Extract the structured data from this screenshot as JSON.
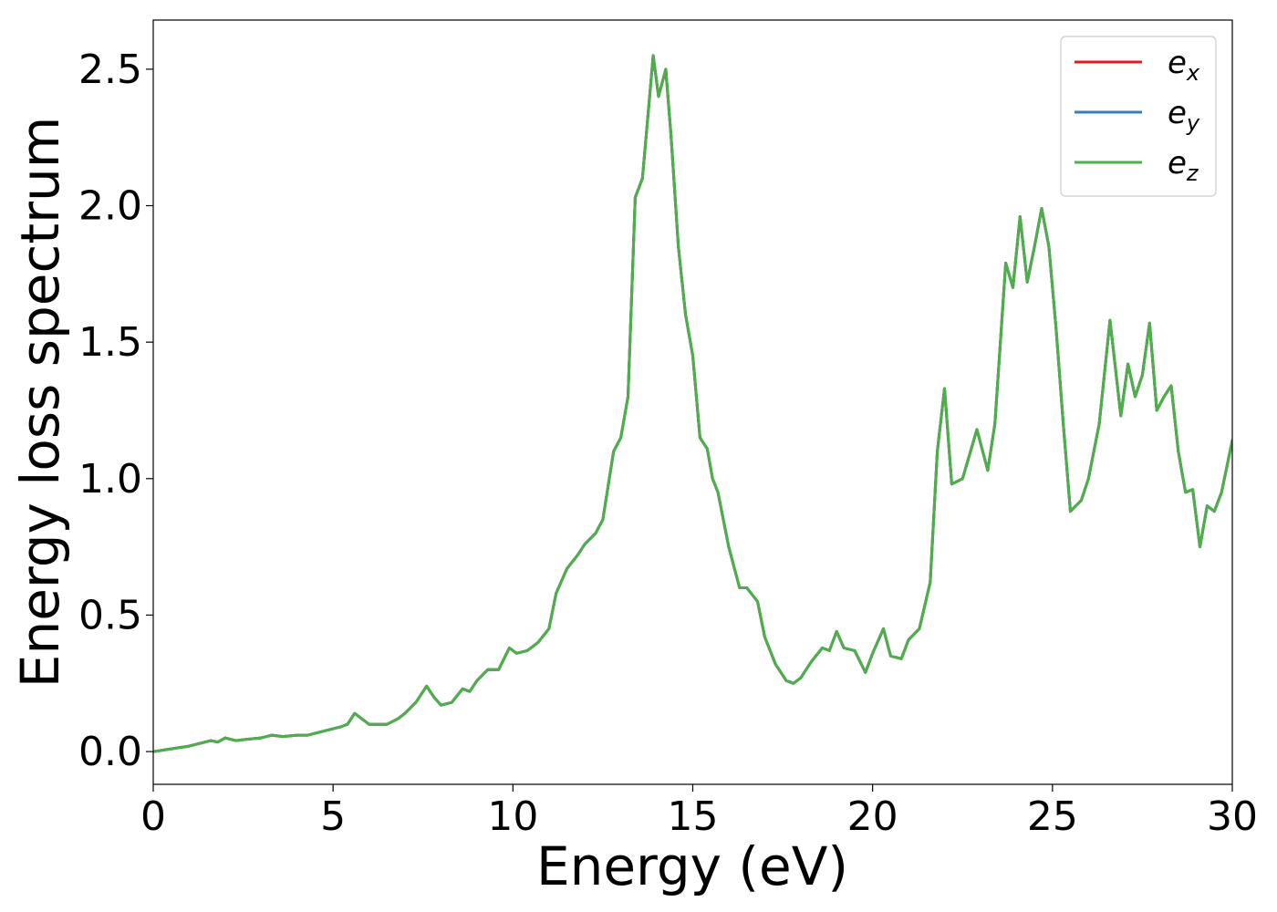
{
  "chart_data": {
    "type": "line",
    "xlabel": "Energy (eV)",
    "ylabel": "Energy loss spectrum",
    "xlim": [
      0,
      30
    ],
    "ylim": [
      -0.12,
      2.68
    ],
    "xticks": [
      0,
      5,
      10,
      15,
      20,
      25,
      30
    ],
    "xtick_labels": [
      "0",
      "5",
      "10",
      "15",
      "20",
      "25",
      "30"
    ],
    "yticks": [
      0.0,
      0.5,
      1.0,
      1.5,
      2.0,
      2.5
    ],
    "ytick_labels": [
      "0.0",
      "0.5",
      "1.0",
      "1.5",
      "2.0",
      "2.5"
    ],
    "grid": false,
    "legend_position": "top-right",
    "series": [
      {
        "name": "e",
        "subscript": "x",
        "color": "#e41a1c",
        "x": [
          0,
          0.5,
          1.0,
          1.3,
          1.6,
          1.8,
          2.0,
          2.3,
          2.6,
          3.0,
          3.3,
          3.6,
          4.0,
          4.3,
          4.6,
          4.9,
          5.2,
          5.4,
          5.6,
          5.8,
          6.0,
          6.3,
          6.5,
          6.8,
          7.0,
          7.3,
          7.6,
          7.8,
          8.0,
          8.3,
          8.6,
          8.8,
          9.0,
          9.3,
          9.6,
          9.9,
          10.1,
          10.4,
          10.7,
          11.0,
          11.2,
          11.5,
          11.8,
          12.0,
          12.3,
          12.5,
          12.8,
          13.0,
          13.2,
          13.4,
          13.6,
          13.8,
          13.9,
          14.05,
          14.25,
          14.4,
          14.6,
          14.8,
          15.0,
          15.2,
          15.4,
          15.55,
          15.7,
          16.0,
          16.3,
          16.5,
          16.8,
          17.0,
          17.3,
          17.6,
          17.8,
          18.0,
          18.3,
          18.6,
          18.8,
          19.0,
          19.2,
          19.5,
          19.8,
          20.0,
          20.3,
          20.5,
          20.8,
          21.0,
          21.3,
          21.6,
          21.8,
          22.0,
          22.2,
          22.5,
          22.9,
          23.2,
          23.4,
          23.7,
          23.9,
          24.1,
          24.3,
          24.5,
          24.7,
          24.9,
          25.1,
          25.3,
          25.5,
          25.8,
          26.0,
          26.3,
          26.6,
          26.9,
          27.1,
          27.3,
          27.5,
          27.7,
          27.9,
          28.1,
          28.3,
          28.5,
          28.7,
          28.9,
          29.1,
          29.3,
          29.5,
          29.7,
          30.0
        ],
        "y": [
          0.0,
          0.01,
          0.02,
          0.03,
          0.04,
          0.035,
          0.05,
          0.04,
          0.045,
          0.05,
          0.06,
          0.055,
          0.06,
          0.06,
          0.07,
          0.08,
          0.09,
          0.1,
          0.14,
          0.12,
          0.1,
          0.1,
          0.1,
          0.12,
          0.14,
          0.18,
          0.24,
          0.2,
          0.17,
          0.18,
          0.23,
          0.22,
          0.26,
          0.3,
          0.3,
          0.38,
          0.36,
          0.37,
          0.4,
          0.45,
          0.58,
          0.67,
          0.72,
          0.76,
          0.8,
          0.85,
          1.1,
          1.15,
          1.3,
          2.03,
          2.1,
          2.4,
          2.55,
          2.4,
          2.5,
          2.25,
          1.85,
          1.6,
          1.45,
          1.15,
          1.11,
          1.0,
          0.95,
          0.75,
          0.6,
          0.6,
          0.55,
          0.42,
          0.32,
          0.26,
          0.25,
          0.27,
          0.33,
          0.38,
          0.37,
          0.44,
          0.38,
          0.37,
          0.29,
          0.36,
          0.45,
          0.35,
          0.34,
          0.41,
          0.45,
          0.62,
          1.1,
          1.33,
          0.98,
          1.0,
          1.18,
          1.03,
          1.2,
          1.79,
          1.7,
          1.96,
          1.72,
          1.85,
          1.99,
          1.85,
          1.55,
          1.2,
          0.88,
          0.92,
          1.0,
          1.2,
          1.58,
          1.23,
          1.42,
          1.3,
          1.38,
          1.57,
          1.25,
          1.3,
          1.34,
          1.1,
          0.95,
          0.96,
          0.75,
          0.9,
          0.88,
          0.95,
          1.14
        ]
      },
      {
        "name": "e",
        "subscript": "y",
        "color": "#377eb8",
        "x": [
          0,
          0.5,
          1.0,
          1.3,
          1.6,
          1.8,
          2.0,
          2.3,
          2.6,
          3.0,
          3.3,
          3.6,
          4.0,
          4.3,
          4.6,
          4.9,
          5.2,
          5.4,
          5.6,
          5.8,
          6.0,
          6.3,
          6.5,
          6.8,
          7.0,
          7.3,
          7.6,
          7.8,
          8.0,
          8.3,
          8.6,
          8.8,
          9.0,
          9.3,
          9.6,
          9.9,
          10.1,
          10.4,
          10.7,
          11.0,
          11.2,
          11.5,
          11.8,
          12.0,
          12.3,
          12.5,
          12.8,
          13.0,
          13.2,
          13.4,
          13.6,
          13.8,
          13.9,
          14.05,
          14.25,
          14.4,
          14.6,
          14.8,
          15.0,
          15.2,
          15.4,
          15.55,
          15.7,
          16.0,
          16.3,
          16.5,
          16.8,
          17.0,
          17.3,
          17.6,
          17.8,
          18.0,
          18.3,
          18.6,
          18.8,
          19.0,
          19.2,
          19.5,
          19.8,
          20.0,
          20.3,
          20.5,
          20.8,
          21.0,
          21.3,
          21.6,
          21.8,
          22.0,
          22.2,
          22.5,
          22.9,
          23.2,
          23.4,
          23.7,
          23.9,
          24.1,
          24.3,
          24.5,
          24.7,
          24.9,
          25.1,
          25.3,
          25.5,
          25.8,
          26.0,
          26.3,
          26.6,
          26.9,
          27.1,
          27.3,
          27.5,
          27.7,
          27.9,
          28.1,
          28.3,
          28.5,
          28.7,
          28.9,
          29.1,
          29.3,
          29.5,
          29.7,
          30.0
        ],
        "y": [
          0.0,
          0.01,
          0.02,
          0.03,
          0.04,
          0.035,
          0.05,
          0.04,
          0.045,
          0.05,
          0.06,
          0.055,
          0.06,
          0.06,
          0.07,
          0.08,
          0.09,
          0.1,
          0.14,
          0.12,
          0.1,
          0.1,
          0.1,
          0.12,
          0.14,
          0.18,
          0.24,
          0.2,
          0.17,
          0.18,
          0.23,
          0.22,
          0.26,
          0.3,
          0.3,
          0.38,
          0.36,
          0.37,
          0.4,
          0.45,
          0.58,
          0.67,
          0.72,
          0.76,
          0.8,
          0.85,
          1.1,
          1.15,
          1.3,
          2.03,
          2.1,
          2.4,
          2.55,
          2.4,
          2.5,
          2.25,
          1.85,
          1.6,
          1.45,
          1.15,
          1.11,
          1.0,
          0.95,
          0.75,
          0.6,
          0.6,
          0.55,
          0.42,
          0.32,
          0.26,
          0.25,
          0.27,
          0.33,
          0.38,
          0.37,
          0.44,
          0.38,
          0.37,
          0.29,
          0.36,
          0.45,
          0.35,
          0.34,
          0.41,
          0.45,
          0.62,
          1.1,
          1.33,
          0.98,
          1.0,
          1.18,
          1.03,
          1.2,
          1.79,
          1.7,
          1.96,
          1.72,
          1.85,
          1.99,
          1.85,
          1.55,
          1.2,
          0.88,
          0.92,
          1.0,
          1.2,
          1.58,
          1.23,
          1.42,
          1.3,
          1.38,
          1.57,
          1.25,
          1.3,
          1.34,
          1.1,
          0.95,
          0.96,
          0.75,
          0.9,
          0.88,
          0.95,
          1.14
        ]
      },
      {
        "name": "e",
        "subscript": "z",
        "color": "#4daf4a",
        "x": [
          0,
          0.5,
          1.0,
          1.3,
          1.6,
          1.8,
          2.0,
          2.3,
          2.6,
          3.0,
          3.3,
          3.6,
          4.0,
          4.3,
          4.6,
          4.9,
          5.2,
          5.4,
          5.6,
          5.8,
          6.0,
          6.3,
          6.5,
          6.8,
          7.0,
          7.3,
          7.6,
          7.8,
          8.0,
          8.3,
          8.6,
          8.8,
          9.0,
          9.3,
          9.6,
          9.9,
          10.1,
          10.4,
          10.7,
          11.0,
          11.2,
          11.5,
          11.8,
          12.0,
          12.3,
          12.5,
          12.8,
          13.0,
          13.2,
          13.4,
          13.6,
          13.8,
          13.9,
          14.05,
          14.25,
          14.4,
          14.6,
          14.8,
          15.0,
          15.2,
          15.4,
          15.55,
          15.7,
          16.0,
          16.3,
          16.5,
          16.8,
          17.0,
          17.3,
          17.6,
          17.8,
          18.0,
          18.3,
          18.6,
          18.8,
          19.0,
          19.2,
          19.5,
          19.8,
          20.0,
          20.3,
          20.5,
          20.8,
          21.0,
          21.3,
          21.6,
          21.8,
          22.0,
          22.2,
          22.5,
          22.9,
          23.2,
          23.4,
          23.7,
          23.9,
          24.1,
          24.3,
          24.5,
          24.7,
          24.9,
          25.1,
          25.3,
          25.5,
          25.8,
          26.0,
          26.3,
          26.6,
          26.9,
          27.1,
          27.3,
          27.5,
          27.7,
          27.9,
          28.1,
          28.3,
          28.5,
          28.7,
          28.9,
          29.1,
          29.3,
          29.5,
          29.7,
          30.0
        ],
        "y": [
          0.0,
          0.01,
          0.02,
          0.03,
          0.04,
          0.035,
          0.05,
          0.04,
          0.045,
          0.05,
          0.06,
          0.055,
          0.06,
          0.06,
          0.07,
          0.08,
          0.09,
          0.1,
          0.14,
          0.12,
          0.1,
          0.1,
          0.1,
          0.12,
          0.14,
          0.18,
          0.24,
          0.2,
          0.17,
          0.18,
          0.23,
          0.22,
          0.26,
          0.3,
          0.3,
          0.38,
          0.36,
          0.37,
          0.4,
          0.45,
          0.58,
          0.67,
          0.72,
          0.76,
          0.8,
          0.85,
          1.1,
          1.15,
          1.3,
          2.03,
          2.1,
          2.4,
          2.55,
          2.4,
          2.5,
          2.25,
          1.85,
          1.6,
          1.45,
          1.15,
          1.11,
          1.0,
          0.95,
          0.75,
          0.6,
          0.6,
          0.55,
          0.42,
          0.32,
          0.26,
          0.25,
          0.27,
          0.33,
          0.38,
          0.37,
          0.44,
          0.38,
          0.37,
          0.29,
          0.36,
          0.45,
          0.35,
          0.34,
          0.41,
          0.45,
          0.62,
          1.1,
          1.33,
          0.98,
          1.0,
          1.18,
          1.03,
          1.2,
          1.79,
          1.7,
          1.96,
          1.72,
          1.85,
          1.99,
          1.85,
          1.55,
          1.2,
          0.88,
          0.92,
          1.0,
          1.2,
          1.58,
          1.23,
          1.42,
          1.3,
          1.38,
          1.57,
          1.25,
          1.3,
          1.34,
          1.1,
          0.95,
          0.96,
          0.75,
          0.9,
          0.88,
          0.95,
          1.14
        ]
      }
    ]
  }
}
